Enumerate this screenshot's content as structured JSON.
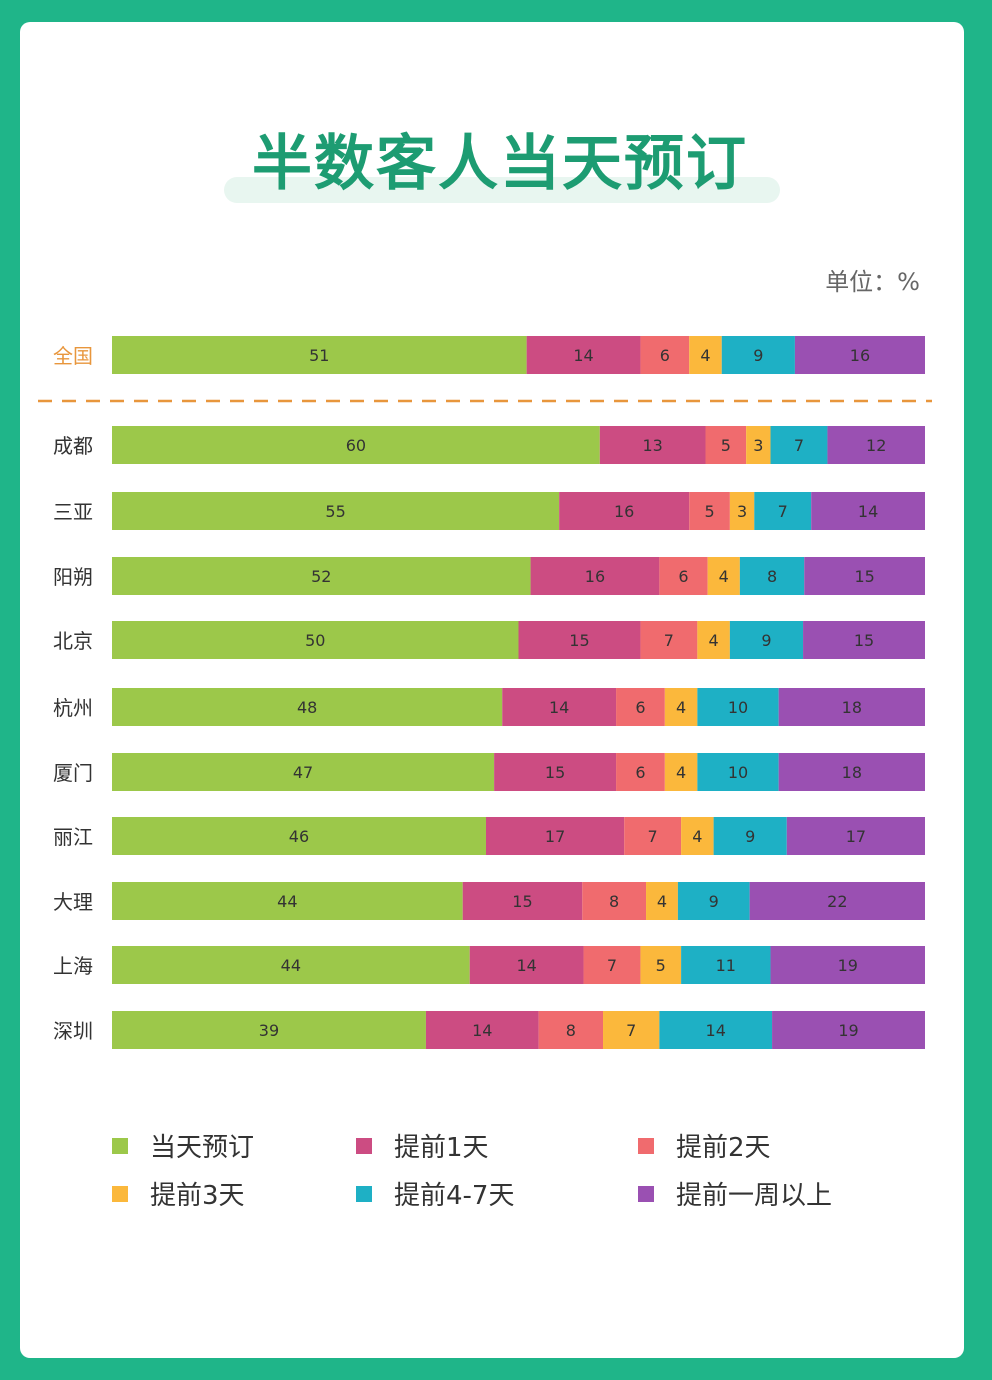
{
  "title": "半数客人当天预订",
  "unit_label": "单位：%",
  "chart_data": {
    "type": "bar",
    "orientation": "horizontal",
    "stacked": true,
    "normalized_percent": true,
    "title": "半数客人当天预订",
    "unit": "单位：%",
    "categories": [
      "全国",
      "成都",
      "三亚",
      "阳朔",
      "北京",
      "杭州",
      "厦门",
      "丽江",
      "大理",
      "上海",
      "深圳"
    ],
    "series": [
      {
        "name": "当天预订",
        "color": "#9cc84a",
        "values": [
          51,
          60,
          55,
          52,
          50,
          48,
          47,
          46,
          44,
          44,
          39
        ]
      },
      {
        "name": "提前1天",
        "color": "#cc4c82",
        "values": [
          14,
          13,
          16,
          16,
          15,
          14,
          15,
          17,
          15,
          14,
          14
        ]
      },
      {
        "name": "提前2天",
        "color": "#f06b6e",
        "values": [
          6,
          5,
          5,
          6,
          7,
          6,
          6,
          7,
          8,
          7,
          8
        ]
      },
      {
        "name": "提前3天",
        "color": "#fbb83c",
        "values": [
          4,
          3,
          3,
          4,
          4,
          4,
          4,
          4,
          4,
          5,
          7
        ]
      },
      {
        "name": "提前4-7天",
        "color": "#1eb0c5",
        "values": [
          9,
          7,
          7,
          8,
          9,
          10,
          10,
          9,
          9,
          11,
          14
        ]
      },
      {
        "name": "提前一周以上",
        "color": "#9a50b2",
        "values": [
          16,
          12,
          14,
          15,
          15,
          18,
          18,
          17,
          22,
          19,
          19
        ]
      }
    ],
    "highlight_category": "全国",
    "highlight_color": "#e8963c",
    "separator_after": "全国"
  }
}
